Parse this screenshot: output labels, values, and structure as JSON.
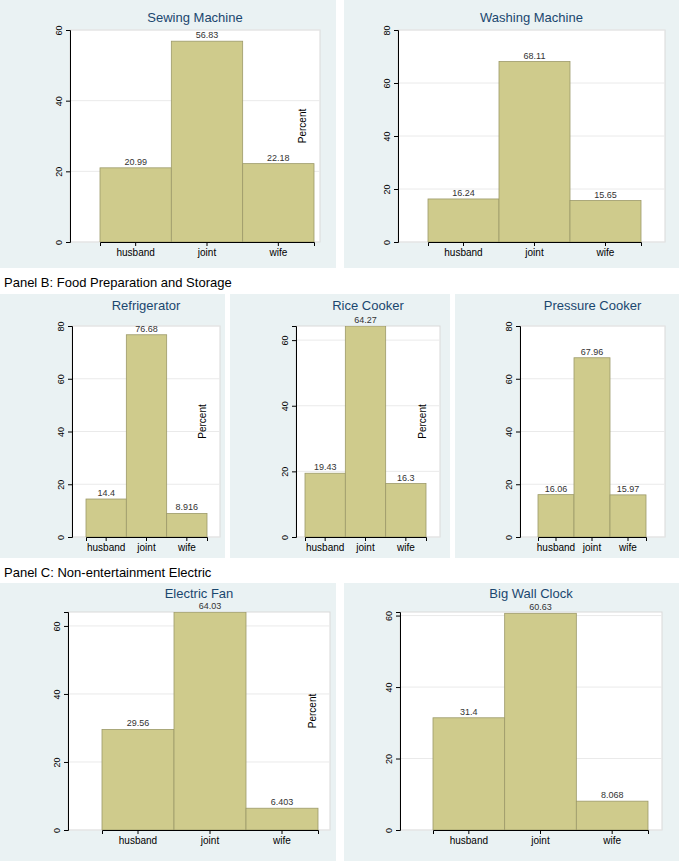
{
  "panel_headings": [
    "Panel B: Food Preparation and Storage",
    "Panel C: Non-entertainment Electric"
  ],
  "chart_data": [
    {
      "type": "bar",
      "title": "Sewing Machine",
      "categories": [
        "husband",
        "joint",
        "wife"
      ],
      "values": [
        20.99,
        56.83,
        22.18
      ],
      "color": "#cfcb8c",
      "ylim": [
        0,
        60
      ],
      "yticks": [
        0,
        20,
        40,
        60
      ],
      "grid": true,
      "data_labels": true,
      "y_label": "Percent"
    },
    {
      "type": "bar",
      "title": "Washing Machine",
      "categories": [
        "husband",
        "joint",
        "wife"
      ],
      "values": [
        16.24,
        68.11,
        15.65
      ],
      "color": "#cfcb8c",
      "ylim": [
        0,
        80
      ],
      "yticks": [
        0,
        20,
        40,
        60,
        80
      ],
      "grid": true,
      "data_labels": true
    },
    {
      "type": "bar",
      "title": "Refrigerator",
      "categories": [
        "husband",
        "joint",
        "wife"
      ],
      "values": [
        14.4,
        76.68,
        8.916
      ],
      "color": "#cfcb8c",
      "ylim": [
        0,
        80
      ],
      "yticks": [
        0,
        20,
        40,
        60,
        80
      ],
      "grid": true,
      "data_labels": true,
      "y_label": "Percent"
    },
    {
      "type": "bar",
      "title": "Rice Cooker",
      "categories": [
        "husband",
        "joint",
        "wife"
      ],
      "values": [
        19.43,
        64.27,
        16.3
      ],
      "color": "#cfcb8c",
      "ylim": [
        0,
        64.3
      ],
      "yticks": [
        0,
        20,
        40,
        60
      ],
      "grid": true,
      "data_labels": true,
      "y_label": "Percent"
    },
    {
      "type": "bar",
      "title": "Pressure Cooker",
      "categories": [
        "husband",
        "joint",
        "wife"
      ],
      "values": [
        16.06,
        67.96,
        15.97
      ],
      "color": "#cfcb8c",
      "ylim": [
        0,
        80
      ],
      "yticks": [
        0,
        20,
        40,
        60,
        80
      ],
      "grid": true,
      "data_labels": true
    },
    {
      "type": "bar",
      "title": "Electric Fan",
      "categories": [
        "husband",
        "joint",
        "wife"
      ],
      "values": [
        29.56,
        64.03,
        6.403
      ],
      "color": "#cfcb8c",
      "ylim": [
        0,
        64.1
      ],
      "yticks": [
        0,
        20,
        40,
        60
      ],
      "grid": true,
      "data_labels": true,
      "y_label": "Percent"
    },
    {
      "type": "bar",
      "title": "Big Wall Clock",
      "categories": [
        "husband",
        "joint",
        "wife"
      ],
      "values": [
        31.4,
        60.63,
        8.068
      ],
      "color": "#cfcb8c",
      "ylim": [
        0,
        61
      ],
      "yticks": [
        0,
        20,
        40,
        60
      ],
      "grid": true,
      "data_labels": true
    }
  ]
}
